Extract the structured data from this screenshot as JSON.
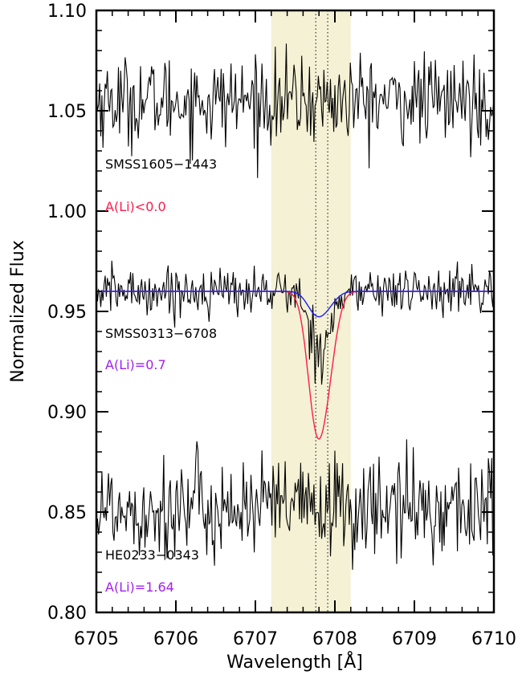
{
  "chart_data": {
    "type": "line",
    "xlabel": "Wavelength [Å]",
    "ylabel": "Normalized Flux",
    "xlim": [
      6705,
      6710
    ],
    "ylim": [
      0.8,
      1.1
    ],
    "x_ticks": [
      6705,
      6706,
      6707,
      6708,
      6709,
      6710
    ],
    "x_tick_labels": [
      "6705",
      "6706",
      "6707",
      "6708",
      "6709",
      "6710"
    ],
    "y_ticks": [
      0.8,
      0.85,
      0.9,
      0.95,
      1.0,
      1.05,
      1.1
    ],
    "y_tick_labels": [
      "0.80",
      "0.85",
      "0.90",
      "0.95",
      "1.00",
      "1.05",
      "1.10"
    ],
    "highlight_band": {
      "x_range": [
        6707.2,
        6708.2
      ],
      "color": "#f4f1d5"
    },
    "reference_lines": [
      6707.76,
      6707.91
    ],
    "annotations": [
      {
        "text": "SMSS1605−1443",
        "color": "#000000"
      },
      {
        "text": "A(Li)<0.0",
        "color": "#ff1a4a"
      },
      {
        "text": "SMSS0313−6708",
        "color": "#000000"
      },
      {
        "text": "A(Li)=0.7",
        "color": "#a020f0"
      },
      {
        "text": "HE0233−0343",
        "color": "#000000"
      },
      {
        "text": "A(Li)=1.64",
        "color": "#a020f0"
      }
    ],
    "series": [
      {
        "name": "SMSS1605−1443",
        "kind": "observed",
        "color": "#000000",
        "continuum": 1.055,
        "noise": 0.011,
        "line_depth": 0.0
      },
      {
        "name": "SMSS0313−6708",
        "kind": "observed",
        "color": "#000000",
        "continuum": 0.96,
        "noise": 0.006,
        "line_depth": 0.022
      },
      {
        "name": "HE0233−0343",
        "kind": "observed",
        "color": "#000000",
        "continuum": 0.852,
        "noise": 0.013,
        "line_depth": 0.0
      },
      {
        "name": "A(Li)=0.7 synthesis",
        "kind": "model",
        "color": "#ff1a4a",
        "continuum": 0.96,
        "line_depth": 0.058
      },
      {
        "name": "upper-limit synthesis",
        "kind": "model",
        "color": "#1a1aff",
        "continuum": 0.96,
        "line_depth": 0.01
      }
    ]
  }
}
